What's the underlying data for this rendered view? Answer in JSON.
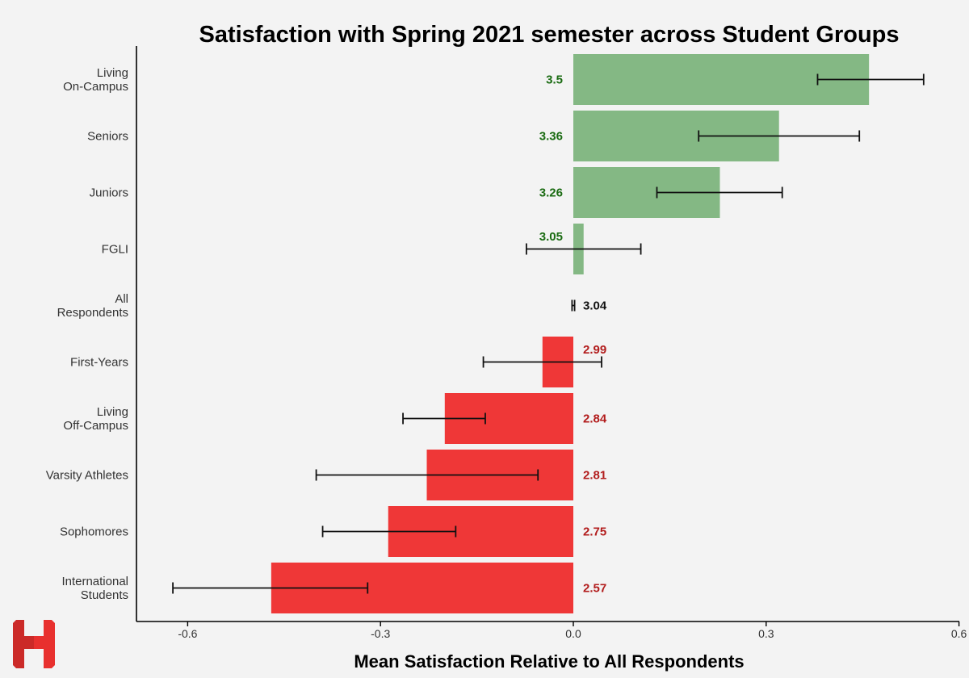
{
  "chart_data": {
    "type": "bar",
    "orientation": "horizontal",
    "title": "Satisfaction with Spring 2021 semester across Student Groups",
    "xlabel": "Mean Satisfaction Relative to All Respondents",
    "ylabel": "",
    "xlim": [
      -0.68,
      0.6
    ],
    "xticks": [
      -0.6,
      -0.3,
      0.0,
      0.3,
      0.6
    ],
    "xtick_labels": [
      "-0.6",
      "-0.3",
      "0.0",
      "0.3",
      "0.6"
    ],
    "grid": false,
    "legend": "none",
    "baseline_mean": 3.04,
    "categories": [
      {
        "label": [
          "Living",
          "On-Campus"
        ],
        "mean": "3.5",
        "value": 0.46,
        "err_low": 0.38,
        "err_high": 0.545
      },
      {
        "label": [
          "Seniors"
        ],
        "mean": "3.36",
        "value": 0.32,
        "err_low": 0.195,
        "err_high": 0.445
      },
      {
        "label": [
          "Juniors"
        ],
        "mean": "3.26",
        "value": 0.228,
        "err_low": 0.13,
        "err_high": 0.325
      },
      {
        "label": [
          "FGLI"
        ],
        "mean": "3.05",
        "value": 0.016,
        "err_low": -0.073,
        "err_high": 0.105
      },
      {
        "label": [
          "All",
          "Respondents"
        ],
        "mean": "3.04",
        "value": 0.0,
        "err_low": -0.002,
        "err_high": 0.002
      },
      {
        "label": [
          "First-Years"
        ],
        "mean": "2.99",
        "value": -0.048,
        "err_low": -0.14,
        "err_high": 0.044
      },
      {
        "label": [
          "Living",
          "Off-Campus"
        ],
        "mean": "2.84",
        "value": -0.2,
        "err_low": -0.265,
        "err_high": -0.137
      },
      {
        "label": [
          "Varsity Athletes"
        ],
        "mean": "2.81",
        "value": -0.228,
        "err_low": -0.4,
        "err_high": -0.055
      },
      {
        "label": [
          "Sophomores"
        ],
        "mean": "2.75",
        "value": -0.288,
        "err_low": -0.39,
        "err_high": -0.183
      },
      {
        "label": [
          "International",
          "Students"
        ],
        "mean": "2.57",
        "value": -0.47,
        "err_low": -0.623,
        "err_high": -0.32
      }
    ],
    "colors": {
      "positive": "#84b884",
      "negative": "#ef3737",
      "positive_text": "#1a6b12",
      "negative_text": "#b21c1c",
      "neutral_text": "#111111",
      "errorbar": "#111111"
    }
  },
  "logo": {
    "name": "harvard-h-logo",
    "color": "#e8302e"
  }
}
